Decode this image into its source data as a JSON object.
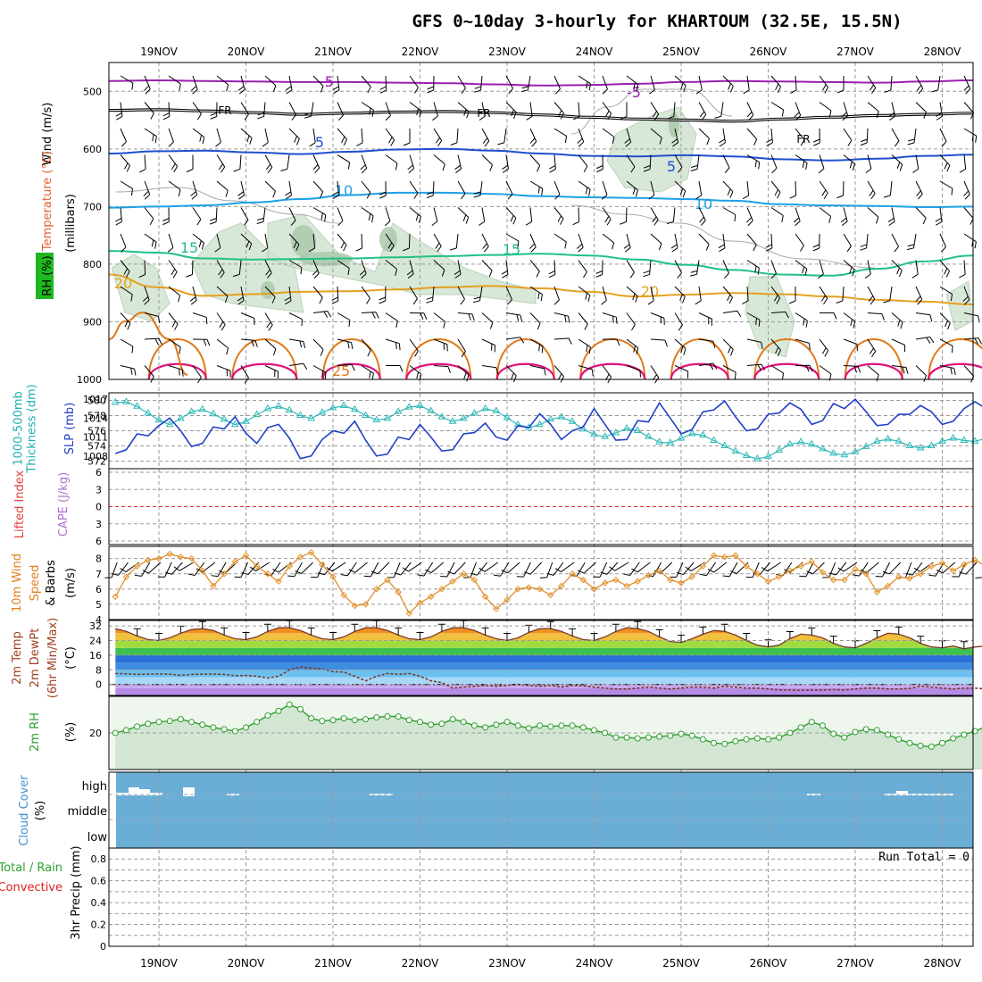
{
  "title": "GFS 0~10day 3-hourly for KHARTOUM (32.5E, 15.5N)",
  "dates": [
    "19NOV",
    "20NOV",
    "21NOV",
    "22NOV",
    "23NOV",
    "24NOV",
    "25NOV",
    "26NOV",
    "27NOV",
    "28NOV"
  ],
  "colors": {
    "grid": "#9a9a9a",
    "temp_purple": "#9a1fb0",
    "freezing": "#000000",
    "temp_blue": "#1f4fcf",
    "temp_cyan": "#1ea0e6",
    "temp_green": "#20c088",
    "temp_gold": "#e6a020",
    "temp_orange": "#e07818",
    "temp_magenta": "#e0107a",
    "rh_fill": "#cfe3cf",
    "slp": "#2040c8",
    "thickness": "#30b8b8",
    "wind": "#e0902a",
    "cloud": "#6aaed6",
    "rh2m": "#2e9e2e"
  },
  "chart_data": [
    {
      "panel": "upper-air",
      "type": "heatmap",
      "ylabels": [
        "RH (%)",
        "Temperature (°C)",
        "Wind (m/s)",
        "(millibars)"
      ],
      "yticks": [
        500,
        600,
        700,
        800,
        900,
        1000
      ],
      "ylim": [
        1000,
        450
      ],
      "contour_labels": [
        {
          "text": "-5",
          "series": "temp_purple"
        },
        {
          "text": "-5",
          "series": "temp_purple"
        },
        {
          "text": "FR",
          "series": "freezing"
        },
        {
          "text": "FR",
          "series": "freezing"
        },
        {
          "text": "FR",
          "series": "freezing"
        },
        {
          "text": "5",
          "series": "temp_blue"
        },
        {
          "text": "5",
          "series": "temp_blue"
        },
        {
          "text": "10",
          "series": "temp_cyan"
        },
        {
          "text": "10",
          "series": "temp_cyan"
        },
        {
          "text": "15",
          "series": "temp_green"
        },
        {
          "text": "15",
          "series": "temp_green"
        },
        {
          "text": "20",
          "series": "temp_gold"
        },
        {
          "text": "20",
          "series": "temp_gold"
        },
        {
          "text": "25",
          "series": "temp_orange"
        }
      ],
      "isotherms": [
        {
          "name": "-5",
          "p": [
            482,
            481,
            482,
            483,
            484,
            484,
            485,
            486,
            488,
            490,
            489,
            487,
            484,
            482,
            483,
            484,
            485,
            483,
            481
          ]
        },
        {
          "name": "FR",
          "p": [
            533,
            532,
            534,
            537,
            540,
            538,
            536,
            535,
            537,
            541,
            545,
            548,
            550,
            552,
            548,
            545,
            542,
            540,
            538
          ]
        },
        {
          "name": "5",
          "p": [
            608,
            604,
            603,
            606,
            609,
            605,
            601,
            600,
            603,
            608,
            612,
            613,
            611,
            613,
            618,
            620,
            617,
            612,
            610
          ]
        },
        {
          "name": "10",
          "p": [
            702,
            700,
            698,
            693,
            687,
            680,
            676,
            676,
            678,
            682,
            684,
            685,
            687,
            690,
            696,
            698,
            699,
            701,
            700
          ]
        },
        {
          "name": "15",
          "p": [
            777,
            780,
            790,
            792,
            791,
            790,
            788,
            786,
            784,
            782,
            785,
            792,
            801,
            810,
            818,
            820,
            808,
            795,
            785
          ]
        },
        {
          "name": "20",
          "p": [
            818,
            840,
            855,
            852,
            848,
            847,
            844,
            840,
            838,
            842,
            848,
            856,
            853,
            850,
            852,
            856,
            862,
            865,
            870
          ]
        }
      ]
    },
    {
      "panel": "slp-thickness",
      "type": "line",
      "ylabels_left": [
        "1000-500mb",
        "Thickness (dm)"
      ],
      "ylabel_right": "SLP (mb)",
      "ticks_left": [
        580,
        578,
        576,
        574,
        572
      ],
      "ticks_right": [
        1017,
        1014,
        1011,
        1008
      ],
      "ylim_left": [
        571,
        581
      ],
      "ylim_right": [
        1006,
        1018
      ],
      "series": [
        {
          "name": "SLP (mb)",
          "values": [
            1008.4,
            1009.0,
            1011.5,
            1011.2,
            1012.8,
            1014.0,
            1012.0,
            1009.5,
            1010.0,
            1012.6,
            1012.3,
            1014.2,
            1011.6,
            1010.0,
            1012.5,
            1013.0,
            1010.8,
            1007.6,
            1008.0,
            1010.6,
            1012.0,
            1011.6,
            1013.5,
            1010.5,
            1008.0,
            1008.3,
            1011.0,
            1010.6,
            1013.0,
            1011.0,
            1008.8,
            1009.0,
            1011.5,
            1011.7,
            1013.2,
            1011.0,
            1010.5,
            1012.8,
            1012.5,
            1014.7,
            1013.0,
            1010.6,
            1012.0,
            1012.6,
            1015.5,
            1013.0,
            1010.5,
            1010.6,
            1013.6,
            1013.4,
            1016.4,
            1014.0,
            1011.5,
            1012.2,
            1015.0,
            1015.3,
            1016.7,
            1014.2,
            1012.0,
            1012.3,
            1014.6,
            1014.8,
            1016.4,
            1015.4,
            1013.0,
            1013.6,
            1016.3,
            1015.5,
            1017.0,
            1015.0,
            1012.8,
            1013.0,
            1014.6,
            1014.6,
            1016.0,
            1015.0,
            1013.0,
            1013.5,
            1015.5,
            1016.6,
            1015.5
          ]
        },
        {
          "name": "Thickness (dm)",
          "values": [
            579.7,
            579.8,
            579.2,
            578.3,
            577.4,
            576.8,
            577.6,
            578.5,
            578.8,
            578.2,
            577.5,
            576.8,
            577.2,
            578.1,
            578.9,
            579.2,
            578.7,
            578.0,
            577.6,
            578.4,
            579.0,
            579.3,
            578.8,
            578.0,
            577.4,
            577.6,
            578.5,
            579.1,
            579.3,
            578.6,
            577.8,
            577.2,
            577.6,
            578.3,
            578.9,
            578.6,
            577.7,
            576.8,
            576.4,
            576.8,
            577.5,
            577.8,
            577.2,
            576.2,
            575.5,
            575.2,
            575.7,
            576.3,
            576.0,
            575.2,
            574.5,
            574.4,
            575.0,
            575.6,
            575.4,
            574.7,
            574.0,
            573.3,
            572.7,
            572.3,
            572.6,
            573.4,
            574.2,
            574.5,
            574.2,
            573.6,
            573.0,
            572.8,
            573.2,
            573.9,
            574.6,
            574.9,
            574.6,
            574.0,
            573.7,
            574.0,
            574.6,
            575.0,
            574.7,
            574.6,
            575.0
          ]
        }
      ]
    },
    {
      "panel": "stability",
      "type": "line",
      "ylabels": [
        "Lifted Index",
        "CAPE (J/kg)"
      ],
      "yticks": [
        "6",
        "3",
        "0",
        "3",
        "6"
      ],
      "ylim": [
        -6,
        6
      ]
    },
    {
      "panel": "surface-wind",
      "type": "line",
      "ylabels": [
        "10m Wind",
        "Speed",
        "& Barbs",
        "(m/s)"
      ],
      "yticks": [
        8,
        7,
        6,
        5,
        4
      ],
      "ylim": [
        4,
        8.8
      ],
      "series": [
        {
          "name": "10m Wind Speed",
          "values": [
            5.5,
            6.8,
            7.5,
            7.9,
            8.0,
            8.3,
            8.1,
            8.0,
            7.2,
            6.2,
            7.0,
            7.8,
            8.2,
            7.5,
            7.0,
            6.5,
            7.5,
            8.1,
            8.4,
            7.6,
            6.8,
            5.6,
            4.9,
            5.0,
            6.0,
            6.6,
            5.8,
            4.4,
            5.1,
            5.5,
            6.0,
            6.5,
            7.0,
            6.6,
            5.5,
            4.7,
            5.3,
            6.0,
            6.1,
            6.0,
            5.6,
            6.2,
            7.0,
            6.6,
            6.0,
            6.4,
            6.6,
            6.2,
            6.5,
            6.9,
            7.2,
            6.6,
            6.4,
            6.8,
            7.5,
            8.2,
            8.1,
            8.2,
            7.5,
            7.0,
            6.5,
            6.8,
            7.2,
            7.5,
            7.8,
            7.1,
            6.6,
            6.6,
            7.3,
            7.0,
            5.8,
            6.2,
            6.8,
            6.7,
            7.0,
            7.5,
            7.7,
            7.2,
            7.6,
            7.9,
            7.5
          ]
        }
      ]
    },
    {
      "panel": "surface-temp",
      "type": "area",
      "ylabels": [
        "2m Temp",
        "2m DewPt",
        "(6hr Min/Max)",
        "(°C)"
      ],
      "yticks": [
        32,
        24,
        16,
        8,
        0
      ],
      "ylim": [
        -6,
        35
      ],
      "series": [
        {
          "name": "2m Temp",
          "values": [
            30.5,
            29.0,
            26.5,
            24.5,
            24.0,
            25.5,
            28.0,
            30.0,
            30.5,
            29.5,
            27.0,
            25.0,
            24.5,
            26.0,
            29.0,
            31.0,
            31.0,
            29.5,
            27.0,
            25.0,
            24.5,
            26.0,
            29.0,
            31.0,
            31.0,
            29.5,
            27.0,
            25.0,
            24.5,
            26.0,
            29.0,
            31.0,
            31.0,
            29.5,
            27.0,
            25.0,
            24.0,
            25.5,
            28.5,
            30.5,
            30.5,
            29.0,
            26.5,
            24.5,
            24.0,
            26.0,
            29.0,
            31.0,
            30.5,
            29.0,
            26.0,
            23.5,
            23.0,
            25.0,
            27.5,
            29.5,
            29.0,
            27.0,
            24.0,
            21.5,
            20.5,
            21.5,
            25.0,
            27.5,
            27.0,
            25.5,
            22.5,
            20.5,
            20.0,
            22.5,
            25.5,
            28.0,
            27.5,
            25.5,
            22.5,
            20.5,
            20.0,
            21.0,
            19.5,
            20.5,
            21.0
          ]
        },
        {
          "name": "2m DewPt",
          "values": [
            6.0,
            5.8,
            5.5,
            5.6,
            5.8,
            5.6,
            5.0,
            5.5,
            5.6,
            5.7,
            5.5,
            4.8,
            5.0,
            4.5,
            3.5,
            4.5,
            8.0,
            9.5,
            9.0,
            8.5,
            7.0,
            6.8,
            4.5,
            2.0,
            4.5,
            6.0,
            5.5,
            6.0,
            4.5,
            2.0,
            1.0,
            -2.0,
            -1.5,
            -1.0,
            -0.5,
            -1.0,
            -0.5,
            0.0,
            -0.5,
            -1.0,
            -0.5,
            -1.5,
            -0.5,
            -0.8,
            -1.5,
            -2.0,
            -2.5,
            -2.5,
            -2.0,
            -1.5,
            -2.0,
            -2.5,
            -2.0,
            -1.5,
            -1.5,
            -2.0,
            -1.0,
            -1.5,
            -2.0,
            -2.0,
            -2.5,
            -3.0,
            -3.0,
            -3.2,
            -3.0,
            -3.0,
            -2.8,
            -3.0,
            -2.5,
            -2.0,
            -2.0,
            -2.5,
            -2.5,
            -2.2,
            -1.0,
            -1.5,
            -2.0,
            -2.5,
            -2.0,
            -2.0,
            -2.5
          ]
        }
      ]
    },
    {
      "panel": "surface-rh",
      "type": "area",
      "ylabels": [
        "2m RH",
        "(%)"
      ],
      "yticks": [
        20
      ],
      "ylim": [
        0,
        40
      ],
      "series": [
        {
          "name": "2m RH",
          "values": [
            20.0,
            21.5,
            23.5,
            25.0,
            26.0,
            26.5,
            27.5,
            26.0,
            24.5,
            23.0,
            22.0,
            21.0,
            23.0,
            26.0,
            29.5,
            32.0,
            35.5,
            33.0,
            28.0,
            26.5,
            27.0,
            28.0,
            27.0,
            27.5,
            28.5,
            29.0,
            29.0,
            27.0,
            26.0,
            24.5,
            25.0,
            27.5,
            26.0,
            24.0,
            23.0,
            24.5,
            26.0,
            24.0,
            22.5,
            24.0,
            23.5,
            24.0,
            24.0,
            23.0,
            21.5,
            20.0,
            17.5,
            17.5,
            17.0,
            17.5,
            18.0,
            18.5,
            19.5,
            18.5,
            16.5,
            14.5,
            14.0,
            15.5,
            16.5,
            17.0,
            16.5,
            17.5,
            20.0,
            23.0,
            26.0,
            24.0,
            19.5,
            17.5,
            20.5,
            22.0,
            21.5,
            19.0,
            16.5,
            14.5,
            13.0,
            12.5,
            14.5,
            17.0,
            19.0,
            21.0,
            23.5
          ]
        }
      ]
    },
    {
      "panel": "cloud-cover",
      "type": "bar",
      "ylabels": [
        "Cloud Cover",
        "(%)"
      ],
      "yticks": [
        "high",
        "middle",
        "low"
      ]
    },
    {
      "panel": "precip",
      "type": "bar",
      "ylabels": [
        "Total / Rain",
        "Convective",
        "3hr Precip (mm)"
      ],
      "yticks": [
        0.8,
        0.6,
        0.4,
        0.2,
        0
      ],
      "ylim": [
        0,
        0.9
      ],
      "run_total": "Run Total = 0"
    }
  ]
}
